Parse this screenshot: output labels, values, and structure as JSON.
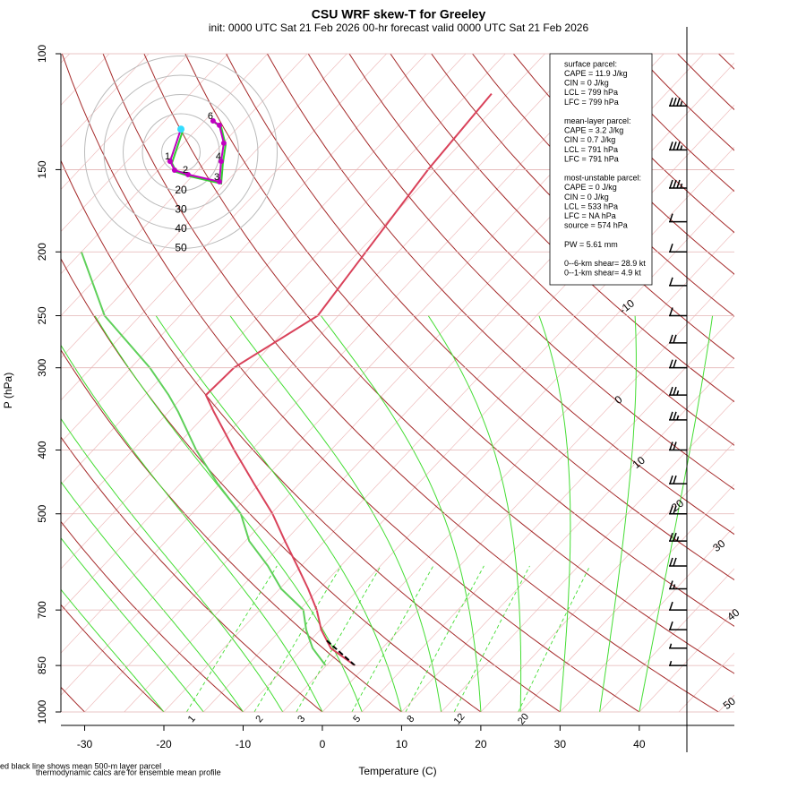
{
  "chart_data": {
    "type": "skew-t",
    "title": "CSU WRF skew-T for Greeley",
    "subtitle": "init: 0000 UTC Sat 21 Feb 2026     00-hr forecast valid 0000 UTC Sat 21 Feb 2026",
    "ylabel": "P (hPa)",
    "xlabel": "Temperature (C)",
    "ylim": [
      1000,
      100
    ],
    "yticks": [
      100,
      150,
      200,
      250,
      300,
      400,
      500,
      700,
      850,
      1000
    ],
    "log_y": true,
    "xlim": [
      -33,
      52
    ],
    "xticks": [
      -30,
      -20,
      -10,
      0,
      10,
      20,
      30,
      40
    ],
    "pressure": [
      850,
      800,
      750,
      700,
      650,
      600,
      550,
      500,
      450,
      400,
      350,
      330,
      300,
      250,
      200,
      150,
      115
    ],
    "series": [
      {
        "color": "#d9425a",
        "values": [
          -1.4,
          -6.5,
          -9.9,
          -12.8,
          -16.4,
          -20.5,
          -25.0,
          -29.8,
          -35.7,
          -42.2,
          -49.3,
          -52.3,
          -52.0,
          -47.6,
          -49.1,
          -51.0,
          -52.0
        ]
      },
      {
        "color": "#5fd05a",
        "values": [
          -5.1,
          -8.8,
          -11.8,
          -14.5,
          -19.8,
          -24.2,
          -29.5,
          -33.8,
          -40.3,
          -47.0,
          -53.8,
          -57.0,
          -62.6,
          -74.5,
          -85.0,
          null,
          null
        ]
      }
    ],
    "parcel": {
      "color": "#000000",
      "pressure": [
        850,
        778
      ],
      "values": [
        -1.4,
        -8.0
      ]
    },
    "isotherm_labels": [
      -10,
      0,
      10,
      20,
      30,
      40,
      50
    ],
    "mixing_ratio_labels": [
      1,
      2,
      3,
      5,
      8,
      12,
      20
    ],
    "hodograph": {
      "ring_labels": [
        20,
        30,
        40,
        50
      ],
      "u": [
        0,
        -5.6,
        -3.3,
        3.7,
        20.0,
        20.9,
        22.3,
        20.0,
        16.7
      ],
      "v": [
        12,
        -4.7,
        -9.3,
        -11.6,
        -15.3,
        -4.7,
        4.7,
        14.0,
        16.3
      ],
      "point_labels": [
        null,
        "1",
        null,
        "2",
        "3",
        "4",
        null,
        null,
        "6"
      ],
      "color": "#c000c0"
    },
    "wind": {
      "pressure": [
        120,
        140,
        160,
        180,
        200,
        225,
        250,
        275,
        300,
        330,
        360,
        400,
        450,
        500,
        550,
        600,
        650,
        700,
        750,
        800,
        850
      ],
      "speed": [
        35,
        35,
        35,
        10,
        10,
        10,
        10,
        20,
        20,
        25,
        25,
        20,
        20,
        20,
        25,
        20,
        15,
        10,
        10,
        5,
        5
      ]
    },
    "info_box": [
      [
        "surface parcel:",
        "CAPE = 11.9 J/kg",
        "CIN = 0 J/kg",
        "LCL = 799 hPa",
        "LFC = 799 hPa"
      ],
      [
        "mean-layer parcel:",
        "CAPE = 3.2 J/kg",
        "CIN = 0.7 J/kg",
        "LCL = 791 hPa",
        "LFC = 791 hPa"
      ],
      [
        "most-unstable parcel:",
        "CAPE = 0 J/kg",
        "CIN = 0 J/kg",
        "LCL = 533 hPa",
        "LFC = NA hPa",
        "source = 574 hPa"
      ],
      [
        "PW =  5.61 mm"
      ],
      [
        "0--6-km shear= 28.9 kt",
        "0--1-km shear= 4.9 kt"
      ]
    ],
    "footnotes": [
      "ed black line shows mean 500-m layer parcel",
      "thermodynamic calcs are for ensemble mean profile"
    ]
  }
}
